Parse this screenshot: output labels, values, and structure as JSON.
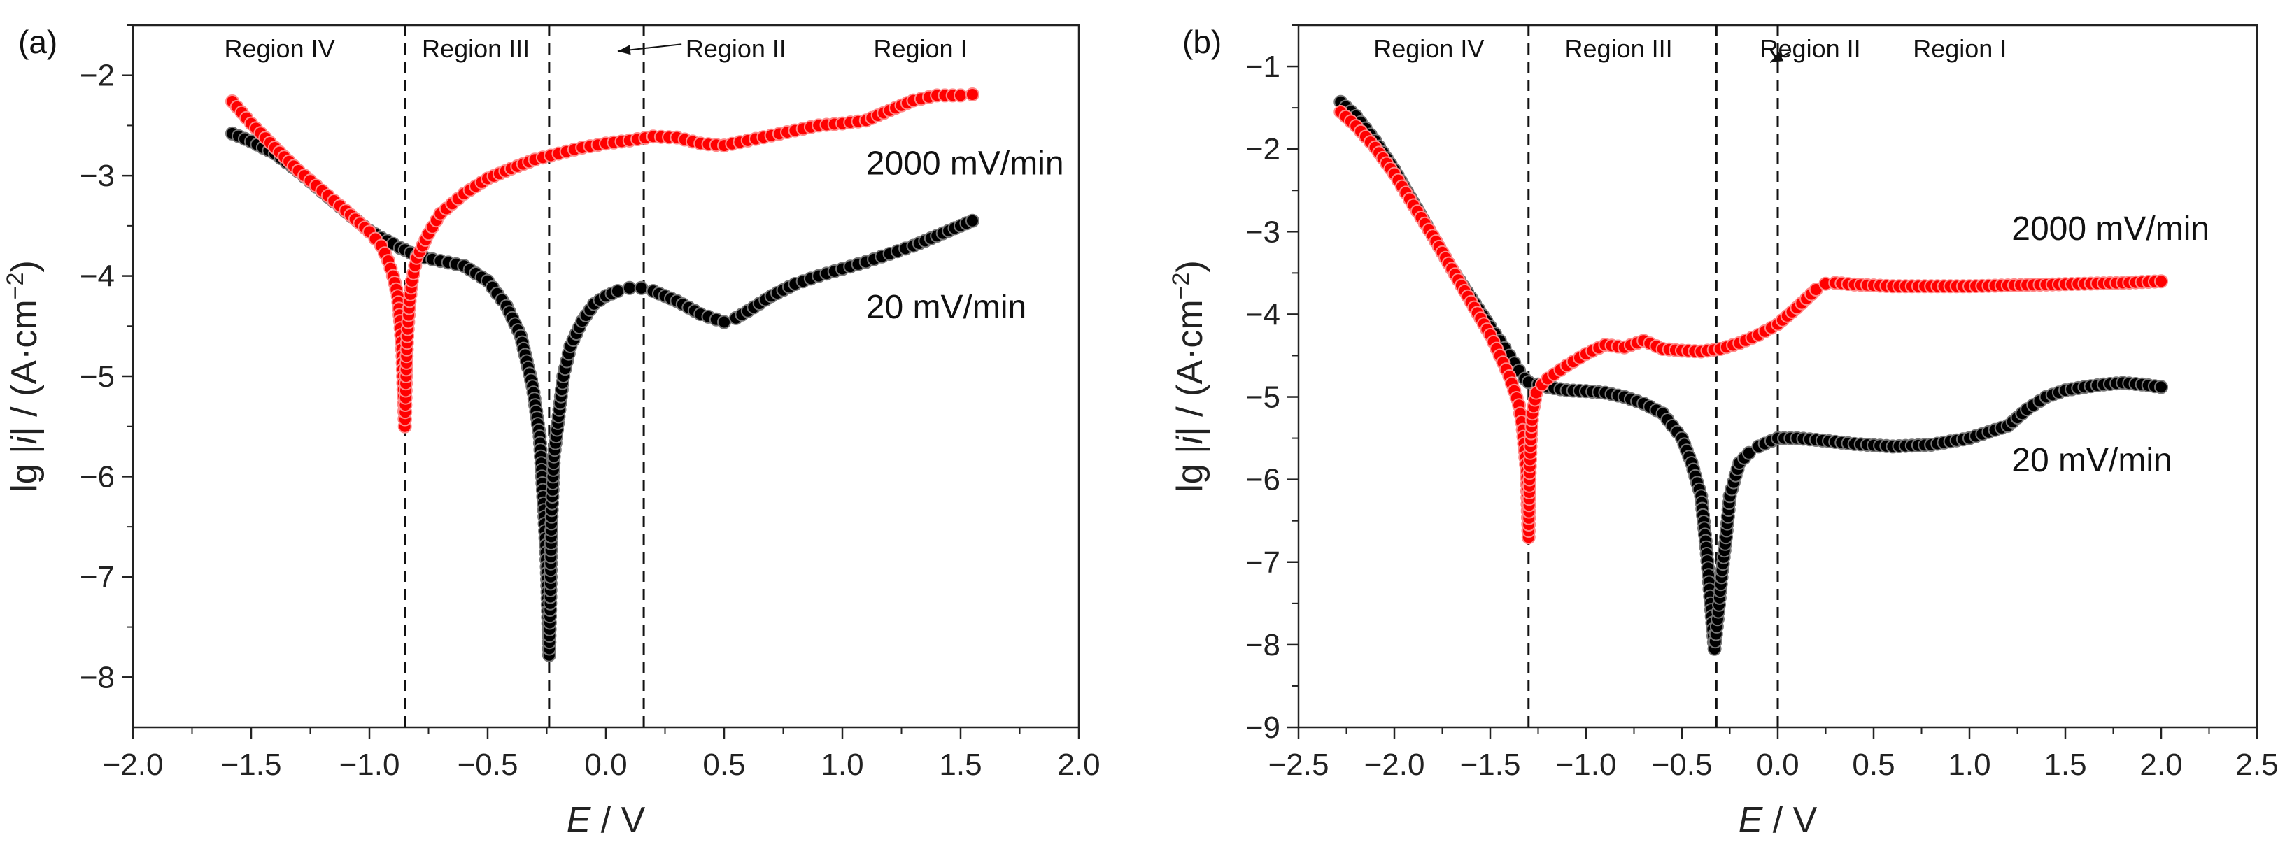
{
  "chart_data": [
    {
      "type": "scatter",
      "panel_label": "(a)",
      "xlabel_italic": "E",
      "xlabel_rest": " / V",
      "ylabel_prefix": "lg |",
      "ylabel_italic": "i",
      "ylabel_suffix": "| / (A·cm",
      "ylabel_exp": "−2",
      "ylabel_end": ")",
      "xlim": [
        -2.0,
        2.0
      ],
      "ylim": [
        -8.5,
        -1.5
      ],
      "xticks": [
        -2.0,
        -1.5,
        -1.0,
        -0.5,
        0.0,
        0.5,
        1.0,
        1.5,
        2.0
      ],
      "xtick_labels": [
        "−2.0",
        "−1.5",
        "−1.0",
        "−0.5",
        "0.0",
        "0.5",
        "1.0",
        "1.5",
        "2.0"
      ],
      "yticks": [
        -8,
        -7,
        -6,
        -5,
        -4,
        -3,
        -2
      ],
      "ytick_labels": [
        "−8",
        "−7",
        "−6",
        "−5",
        "−4",
        "−3",
        "−2"
      ],
      "vlines": [
        -0.85,
        -0.24,
        0.16
      ],
      "regions": [
        {
          "label": "Region IV",
          "x": -1.38
        },
        {
          "label": "Region III",
          "x": -0.55
        },
        {
          "label": "Region II",
          "x": 0.55
        },
        {
          "label": "Region I",
          "x": 1.33
        }
      ],
      "region_ii_arrow": {
        "from": [
          0.32,
          -1.69
        ],
        "to": [
          0.05,
          -1.76
        ]
      },
      "series": [
        {
          "name": "20 mV/min",
          "color": "#000000",
          "label_pos": [
            1.1,
            -4.42
          ],
          "x": [
            -1.58,
            -1.5,
            -1.4,
            -1.3,
            -1.2,
            -1.1,
            -1.0,
            -0.95,
            -0.9,
            -0.87,
            -0.85,
            -0.8,
            -0.7,
            -0.6,
            -0.5,
            -0.42,
            -0.36,
            -0.31,
            -0.28,
            -0.26,
            -0.25,
            -0.24,
            -0.235,
            -0.23,
            -0.22,
            -0.2,
            -0.18,
            -0.15,
            -0.1,
            -0.05,
            0.0,
            0.05,
            0.1,
            0.15,
            0.2,
            0.3,
            0.4,
            0.5,
            0.55,
            0.6,
            0.7,
            0.8,
            0.9,
            1.0,
            1.1,
            1.2,
            1.3,
            1.4,
            1.5,
            1.55
          ],
          "y": [
            -2.58,
            -2.66,
            -2.78,
            -2.96,
            -3.16,
            -3.36,
            -3.55,
            -3.62,
            -3.68,
            -3.72,
            -3.74,
            -3.8,
            -3.85,
            -3.9,
            -4.05,
            -4.3,
            -4.6,
            -5.1,
            -5.6,
            -6.4,
            -6.9,
            -7.78,
            -7.2,
            -6.4,
            -5.8,
            -5.4,
            -5.0,
            -4.7,
            -4.45,
            -4.28,
            -4.2,
            -4.15,
            -4.12,
            -4.12,
            -4.15,
            -4.25,
            -4.38,
            -4.46,
            -4.42,
            -4.35,
            -4.2,
            -4.08,
            -4.0,
            -3.93,
            -3.86,
            -3.78,
            -3.7,
            -3.6,
            -3.5,
            -3.45
          ]
        },
        {
          "name": "2000 mV/min",
          "color": "#ff0000",
          "label_pos": [
            1.1,
            -2.99
          ],
          "x": [
            -1.58,
            -1.5,
            -1.4,
            -1.3,
            -1.2,
            -1.1,
            -1.0,
            -0.95,
            -0.92,
            -0.9,
            -0.88,
            -0.87,
            -0.86,
            -0.855,
            -0.85,
            -0.845,
            -0.84,
            -0.83,
            -0.82,
            -0.8,
            -0.75,
            -0.7,
            -0.6,
            -0.5,
            -0.4,
            -0.3,
            -0.2,
            -0.1,
            0.0,
            0.1,
            0.2,
            0.3,
            0.4,
            0.5,
            0.6,
            0.7,
            0.8,
            0.9,
            1.0,
            1.1,
            1.2,
            1.3,
            1.4,
            1.5,
            1.55
          ],
          "y": [
            -2.26,
            -2.48,
            -2.72,
            -2.95,
            -3.15,
            -3.35,
            -3.56,
            -3.7,
            -3.85,
            -4.0,
            -4.2,
            -4.45,
            -4.8,
            -5.2,
            -5.5,
            -5.0,
            -4.6,
            -4.25,
            -4.05,
            -3.82,
            -3.58,
            -3.38,
            -3.18,
            -3.03,
            -2.93,
            -2.84,
            -2.78,
            -2.72,
            -2.68,
            -2.65,
            -2.61,
            -2.62,
            -2.68,
            -2.7,
            -2.65,
            -2.6,
            -2.55,
            -2.5,
            -2.48,
            -2.45,
            -2.35,
            -2.25,
            -2.2,
            -2.2,
            -2.19
          ]
        }
      ]
    },
    {
      "type": "scatter",
      "panel_label": "(b)",
      "xlabel_italic": "E",
      "xlabel_rest": " / V",
      "ylabel_prefix": "lg |",
      "ylabel_italic": "i",
      "ylabel_suffix": "| / (A·cm",
      "ylabel_exp": "−2",
      "ylabel_end": ")",
      "xlim": [
        -2.5,
        2.5
      ],
      "ylim": [
        -9.0,
        -0.5
      ],
      "xticks": [
        -2.5,
        -2.0,
        -1.5,
        -1.0,
        -0.5,
        0.0,
        0.5,
        1.0,
        1.5,
        2.0,
        2.5
      ],
      "xtick_labels": [
        "−2.5",
        "−2.0",
        "−1.5",
        "−1.0",
        "−0.5",
        "0.0",
        "0.5",
        "1.0",
        "1.5",
        "2.0",
        "2.5"
      ],
      "yticks": [
        -9,
        -8,
        -7,
        -6,
        -5,
        -4,
        -3,
        -2,
        -1
      ],
      "ytick_labels": [
        "−9",
        "−8",
        "−7",
        "−6",
        "−5",
        "−4",
        "−3",
        "−2",
        "−1"
      ],
      "vlines": [
        -1.3,
        -0.32,
        0.0
      ],
      "regions": [
        {
          "label": "Region IV",
          "x": -1.82
        },
        {
          "label": "Region III",
          "x": -0.83
        },
        {
          "label": "Region II",
          "x": 0.17
        },
        {
          "label": "Region I",
          "x": 0.95
        }
      ],
      "region_ii_arrow": {
        "from": [
          0.07,
          -0.82
        ],
        "to": [
          -0.04,
          -0.95
        ]
      },
      "series": [
        {
          "name": "20 mV/min",
          "color": "#000000",
          "label_pos": [
            1.22,
            -5.9
          ],
          "x": [
            -2.28,
            -2.2,
            -2.1,
            -2.0,
            -1.9,
            -1.8,
            -1.7,
            -1.6,
            -1.5,
            -1.45,
            -1.4,
            -1.35,
            -1.32,
            -1.3,
            -1.25,
            -1.2,
            -1.1,
            -1.0,
            -0.9,
            -0.8,
            -0.7,
            -0.6,
            -0.5,
            -0.45,
            -0.4,
            -0.37,
            -0.35,
            -0.33,
            -0.31,
            -0.29,
            -0.27,
            -0.25,
            -0.22,
            -0.2,
            -0.15,
            -0.1,
            0.0,
            0.1,
            0.2,
            0.4,
            0.6,
            0.8,
            1.0,
            1.2,
            1.3,
            1.4,
            1.5,
            1.6,
            1.7,
            1.8,
            1.9,
            2.0
          ],
          "y": [
            -1.43,
            -1.6,
            -1.9,
            -2.25,
            -2.65,
            -3.05,
            -3.45,
            -3.8,
            -4.15,
            -4.32,
            -4.5,
            -4.68,
            -4.78,
            -4.82,
            -4.85,
            -4.88,
            -4.92,
            -4.93,
            -4.95,
            -5.0,
            -5.08,
            -5.2,
            -5.5,
            -5.8,
            -6.2,
            -6.9,
            -7.5,
            -8.05,
            -7.6,
            -7.1,
            -6.7,
            -6.2,
            -5.95,
            -5.8,
            -5.68,
            -5.6,
            -5.5,
            -5.5,
            -5.52,
            -5.57,
            -5.6,
            -5.58,
            -5.5,
            -5.35,
            -5.15,
            -5.0,
            -4.92,
            -4.88,
            -4.85,
            -4.83,
            -4.85,
            -4.88
          ]
        },
        {
          "name": "2000 mV/min",
          "color": "#ff0000",
          "label_pos": [
            1.22,
            -3.1
          ],
          "x": [
            -2.28,
            -2.2,
            -2.1,
            -2.0,
            -1.9,
            -1.8,
            -1.7,
            -1.6,
            -1.5,
            -1.45,
            -1.4,
            -1.35,
            -1.33,
            -1.31,
            -1.3,
            -1.295,
            -1.29,
            -1.28,
            -1.26,
            -1.23,
            -1.2,
            -1.1,
            -1.0,
            -0.9,
            -0.8,
            -0.7,
            -0.6,
            -0.5,
            -0.4,
            -0.3,
            -0.2,
            -0.1,
            0.0,
            0.1,
            0.2,
            0.25,
            0.3,
            0.4,
            0.6,
            0.8,
            1.0,
            1.2,
            1.4,
            1.6,
            1.8,
            2.0
          ],
          "y": [
            -1.55,
            -1.72,
            -1.98,
            -2.3,
            -2.68,
            -3.05,
            -3.45,
            -3.85,
            -4.25,
            -4.5,
            -4.75,
            -5.1,
            -5.4,
            -5.9,
            -6.7,
            -6.0,
            -5.6,
            -5.2,
            -4.95,
            -4.85,
            -4.78,
            -4.62,
            -4.48,
            -4.37,
            -4.4,
            -4.32,
            -4.42,
            -4.44,
            -4.45,
            -4.42,
            -4.35,
            -4.25,
            -4.12,
            -3.92,
            -3.7,
            -3.63,
            -3.62,
            -3.64,
            -3.66,
            -3.66,
            -3.66,
            -3.65,
            -3.64,
            -3.63,
            -3.62,
            -3.6
          ]
        }
      ]
    }
  ]
}
